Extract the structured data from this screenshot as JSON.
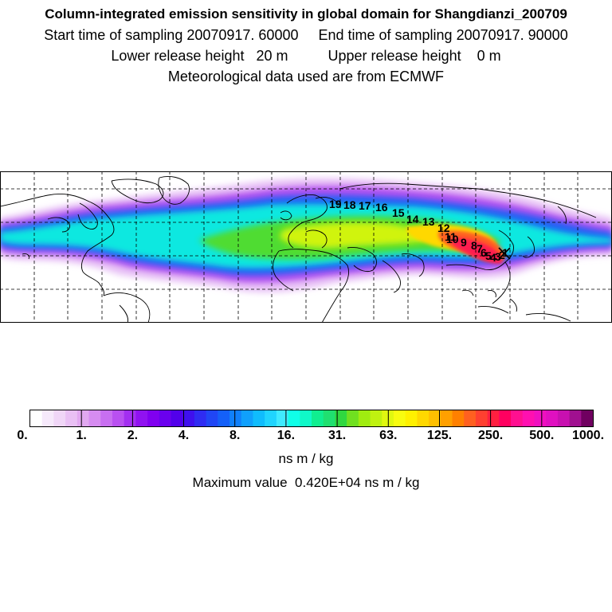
{
  "header": {
    "title": "Column-integrated emission sensitivity in global domain for Shangdianzi_200709",
    "line2": "Start time of sampling 20070917. 60000     End time of sampling 20070917. 90000",
    "line3": "Lower release height   20 m          Upper release height    0 m",
    "line4": "Meteorological data used are from ECMWF"
  },
  "map": {
    "projection": "equirectangular",
    "graticule": "dashed",
    "station": "Shangdianzi",
    "trajectory_labels": [
      "19",
      "18",
      "17",
      "16",
      "15",
      "14",
      "13",
      "12",
      "11",
      "10",
      "9",
      "8",
      "7",
      "6",
      "5",
      "4",
      "3",
      "2",
      "1"
    ]
  },
  "colorbar": {
    "tick_labels": [
      "0.",
      "1.",
      "2.",
      "4.",
      "8.",
      "16.",
      "31.",
      "63.",
      "125.",
      "250.",
      "500.",
      "1000."
    ],
    "colors": [
      "#ffffff",
      "#f6e9fb",
      "#f0d6f7",
      "#e9c0f4",
      "#e1a8f0",
      "#d68cf0",
      "#c86ff0",
      "#b950f0",
      "#a32ff0",
      "#9012f0",
      "#8000f0",
      "#6a00ee",
      "#5200ea",
      "#3f10ee",
      "#2f2cf2",
      "#2046f5",
      "#1460f8",
      "#1080fa",
      "#10a0fc",
      "#10bcfd",
      "#20d4fe",
      "#40eaff",
      "#10ffe8",
      "#10f8c8",
      "#10ee90",
      "#20e070",
      "#30d840",
      "#70e020",
      "#a0ec10",
      "#c0f210",
      "#e0f810",
      "#f8fc10",
      "#fff000",
      "#ffd800",
      "#ffc000",
      "#ffa000",
      "#ff8000",
      "#ff6020",
      "#ff4030",
      "#ff2040",
      "#ff0060",
      "#ff1090",
      "#ff10b0",
      "#f010c0",
      "#e010c0",
      "#c810b0",
      "#a01090",
      "#700060"
    ],
    "unit": "ns m / kg"
  },
  "max_value": "Maximum value  0.420E+04 ns m / kg"
}
